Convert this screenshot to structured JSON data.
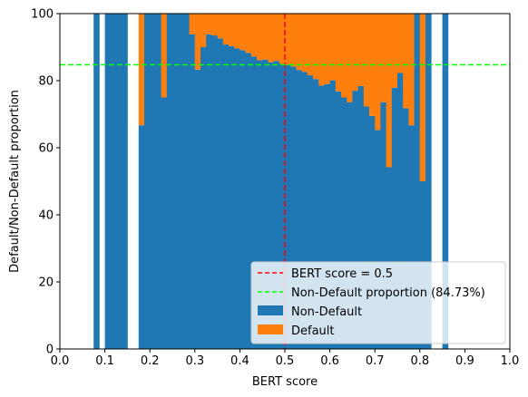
{
  "chart_data": {
    "type": "bar",
    "stacked": true,
    "title": "",
    "xlabel": "BERT score",
    "ylabel": "Default/Non-Default proportion",
    "xlim": [
      0.0,
      1.0
    ],
    "ylim": [
      0,
      100
    ],
    "xticks": [
      "0.0",
      "0.1",
      "0.2",
      "0.3",
      "0.4",
      "0.5",
      "0.6",
      "0.7",
      "0.8",
      "0.9",
      "1.0"
    ],
    "yticks": [
      "0",
      "20",
      "40",
      "60",
      "80",
      "100"
    ],
    "bin_width": 0.0125,
    "bin_starts": [
      0.075,
      0.1,
      0.1125,
      0.125,
      0.1375,
      0.175,
      0.1875,
      0.2,
      0.2125,
      0.225,
      0.2375,
      0.25,
      0.2625,
      0.275,
      0.2875,
      0.3,
      0.3125,
      0.325,
      0.3375,
      0.35,
      0.3625,
      0.375,
      0.3875,
      0.4,
      0.4125,
      0.425,
      0.4375,
      0.45,
      0.4625,
      0.475,
      0.4875,
      0.5,
      0.5125,
      0.525,
      0.5375,
      0.55,
      0.5625,
      0.575,
      0.5875,
      0.6,
      0.6125,
      0.625,
      0.6375,
      0.65,
      0.6625,
      0.675,
      0.6875,
      0.7,
      0.7125,
      0.725,
      0.7375,
      0.75,
      0.7625,
      0.775,
      0.7875,
      0.8,
      0.8125,
      0.85
    ],
    "series": [
      {
        "name": "Non-Default",
        "color": "#1f77b4",
        "values": [
          100,
          100,
          100,
          100,
          100,
          66.7,
          100,
          100,
          100,
          75,
          100,
          100,
          100,
          100,
          93.8,
          83.3,
          90,
          93.8,
          93.5,
          92.6,
          90.8,
          90.3,
          89.6,
          89.1,
          88.3,
          87.2,
          86.1,
          86.3,
          85.5,
          85.9,
          85.0,
          84.7,
          84.2,
          83.2,
          82.6,
          81.6,
          80.5,
          78.5,
          79.0,
          80.1,
          76.8,
          75.0,
          73.6,
          77.0,
          78.4,
          72.3,
          69.5,
          65.3,
          73.6,
          54.2,
          77.9,
          82.3,
          71.8,
          66.7,
          100,
          50,
          100,
          100
        ]
      },
      {
        "name": "Default",
        "color": "#ff7f0e",
        "values": [
          0,
          0,
          0,
          0,
          0,
          33.3,
          0,
          0,
          0,
          25,
          0,
          0,
          0,
          0,
          6.2,
          16.7,
          10,
          6.2,
          6.5,
          7.4,
          9.2,
          9.7,
          10.4,
          10.9,
          11.7,
          12.8,
          13.9,
          13.7,
          14.5,
          14.1,
          15.0,
          15.3,
          15.8,
          16.8,
          17.4,
          18.4,
          19.5,
          21.5,
          21.0,
          19.9,
          23.2,
          25.0,
          26.4,
          23.0,
          21.6,
          27.7,
          30.5,
          34.7,
          26.4,
          45.8,
          22.1,
          17.7,
          28.2,
          33.3,
          0,
          50,
          0,
          0
        ]
      }
    ],
    "reference_lines": [
      {
        "name": "BERT score = 0.5",
        "orientation": "vertical",
        "value": 0.5,
        "color": "#ff0000",
        "style": "dashed"
      },
      {
        "name": "Non-Default proportion (84.73%)",
        "orientation": "horizontal",
        "value": 84.73,
        "color": "#00ff00",
        "style": "dashed"
      }
    ],
    "legend_position": "lower-right",
    "grid": false
  }
}
